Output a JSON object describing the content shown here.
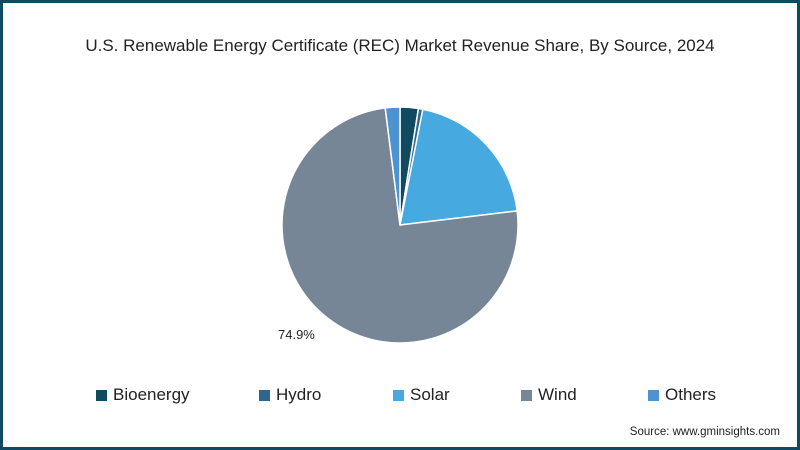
{
  "chart_data": {
    "type": "pie",
    "title": "U.S. Renewable Energy Certificate (REC) Market Revenue Share, By Source, 2024",
    "categories": [
      "Bioenergy",
      "Hydro",
      "Solar",
      "Wind",
      "Others"
    ],
    "values": [
      2.5,
      0.6,
      20.0,
      74.9,
      2.0
    ],
    "colors": [
      "#0f4a61",
      "#2f6690",
      "#46a9df",
      "#768697",
      "#4d93d0"
    ],
    "annotations": [
      {
        "category": "Wind",
        "text": "74.9%"
      }
    ],
    "legend_position": "bottom",
    "start_angle": "top, clockwise"
  },
  "title": "U.S. Renewable Energy Certificate (REC) Market Revenue Share, By Source, 2024",
  "wind_label": "74.9%",
  "legend": [
    {
      "label": "Bioenergy",
      "color": "#0f4a61"
    },
    {
      "label": "Hydro",
      "color": "#2f6690"
    },
    {
      "label": "Solar",
      "color": "#46a9df"
    },
    {
      "label": "Wind",
      "color": "#768697"
    },
    {
      "label": "Others",
      "color": "#4d93d0"
    }
  ],
  "source": "Source: www.gminsights.com"
}
